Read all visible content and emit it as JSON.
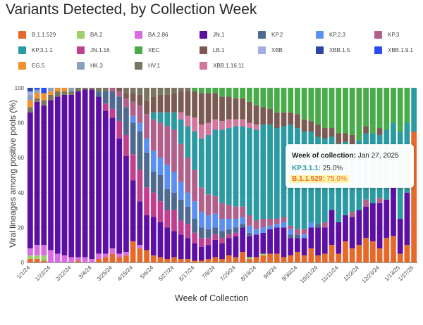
{
  "title": "Variants Detected, by Collection Week",
  "colors": {
    "B.1.1.529": "#e6692a",
    "BA.2": "#9ed16e",
    "BA.2.86": "#d96be3",
    "JN.1": "#5b0fa3",
    "KP.2": "#4f6a8f",
    "KP.2.3": "#5b8ff2",
    "KP.3": "#b0608a",
    "KP.3.1.1": "#2b9aa3",
    "JN.1.16": "#c23f8f",
    "XEC": "#4aab4a",
    "LB.1": "#7a5a52",
    "XBB": "#a0aee0",
    "XBB.1.5": "#2b45a8",
    "XBB.1.9.1": "#2a4cf0",
    "EG.5": "#f2922e",
    "HK.3": "#8ba0bf",
    "HV.1": "#7a7560",
    "XBB.1.16.11": "#d4779c"
  },
  "legend": [
    {
      "name": "B.1.1.529",
      "color": "#e6692a"
    },
    {
      "name": "BA.2",
      "color": "#9ed16e"
    },
    {
      "name": "BA.2.86",
      "color": "#d96be3"
    },
    {
      "name": "JN.1",
      "color": "#5b0fa3"
    },
    {
      "name": "KP.2",
      "color": "#4f6a8f"
    },
    {
      "name": "KP.2.3",
      "color": "#5b8ff2"
    },
    {
      "name": "KP.3",
      "color": "#b0608a"
    },
    {
      "name": "KP.3.1.1",
      "color": "#2b9aa3"
    },
    {
      "name": "JN.1.16",
      "color": "#c23f8f"
    },
    {
      "name": "XEC",
      "color": "#4aab4a"
    },
    {
      "name": "LB.1",
      "color": "#7a5a52"
    },
    {
      "name": "XBB",
      "color": "#a0aee0"
    },
    {
      "name": "XBB.1.5",
      "color": "#2b45a8"
    },
    {
      "name": "XBB.1.9.1",
      "color": "#2a4cf0"
    },
    {
      "name": "EG.5",
      "color": "#f2922e"
    },
    {
      "name": "HK.3",
      "color": "#8ba0bf"
    },
    {
      "name": "HV.1",
      "color": "#7a7560"
    },
    {
      "name": "XBB.1.16.11",
      "color": "#d4779c"
    }
  ],
  "tooltip": {
    "header_label": "Week of collection:",
    "header_date": "Jan 27, 2025",
    "row1_label": "KP.3.1.1:",
    "row1_value": "25.0%",
    "row2_label": "B.1.1.529:",
    "row2_value": "75.0%"
  },
  "chart_data": {
    "type": "bar",
    "stacked": true,
    "xlabel": "Week of Collection",
    "ylabel": "Viral lineages among positive pools (%)",
    "ylim": [
      0,
      100
    ],
    "yticks": [
      0,
      20,
      40,
      60,
      80,
      100
    ],
    "xtick_labels": [
      "1/1/24",
      "1/22/24",
      "2/12/24",
      "3/4/24",
      "3/25/24",
      "4/15/24",
      "5/6/24",
      "5/27/24",
      "6/17/24",
      "7/8/24",
      "7/29/24",
      "8/19/24",
      "9/9/24",
      "9/30/24",
      "10/21/24",
      "11/11/24",
      "12/2/24",
      "12/23/24",
      "1/13/25",
      "1/27/25"
    ],
    "xtick_index": [
      0,
      3,
      6,
      9,
      12,
      15,
      18,
      21,
      24,
      27,
      30,
      33,
      36,
      39,
      42,
      45,
      48,
      51,
      54,
      56
    ],
    "series_order": [
      "B.1.1.529",
      "BA.2",
      "BA.2.86",
      "JN.1",
      "JN.1.16",
      "KP.2",
      "KP.2.3",
      "KP.3",
      "KP.3.1.1",
      "XBB.1.16.11",
      "LB.1",
      "XEC",
      "HV.1",
      "EG.5",
      "HK.3",
      "XBB",
      "XBB.1.5",
      "XBB.1.9.1"
    ],
    "weeks": [
      {
        "B.1.1.529": 2,
        "BA.2": 2,
        "BA.2.86": 4,
        "JN.1": 78,
        "HV.1": 3,
        "EG.5": 4,
        "HK.3": 3,
        "XBB": 2,
        "XBB.1.5": 2
      },
      {
        "B.1.1.529": 2,
        "BA.2": 2,
        "BA.2.86": 6,
        "JN.1": 82,
        "HV.1": 2,
        "EG.5": 3,
        "HK.3": 2,
        "XBB.1.9.1": 1
      },
      {
        "B.1.1.529": 1,
        "BA.2": 3,
        "BA.2.86": 6,
        "JN.1": 80,
        "HV.1": 3,
        "EG.5": 4,
        "XBB.1.9.1": 3
      },
      {
        "BA.2.86": 7,
        "JN.1": 86,
        "HV.1": 3,
        "EG.5": 2,
        "HK.3": 2
      },
      {
        "BA.2.86": 5,
        "JN.1": 90,
        "HV.1": 3,
        "EG.5": 2
      },
      {
        "BA.2.86": 4,
        "JN.1": 92,
        "HV.1": 2,
        "EG.5": 2
      },
      {
        "BA.2.86": 3,
        "JN.1": 93,
        "HV.1": 2,
        "HK.3": 2
      },
      {
        "B.1.1.529": 1,
        "BA.2.86": 2,
        "JN.1": 95,
        "HV.1": 2
      },
      {
        "BA.2.86": 3,
        "JN.1": 96,
        "HV.1": 1
      },
      {
        "BA.2.86": 2,
        "JN.1": 97,
        "HV.1": 1
      },
      {
        "B.1.1.529": 2,
        "BA.2.86": 3,
        "JN.1": 90,
        "KP.2": 3,
        "HV.1": 2
      },
      {
        "B.1.1.529": 3,
        "BA.2.86": 2,
        "JN.1": 82,
        "JN.1.16": 4,
        "KP.2": 7,
        "HV.1": 2
      },
      {
        "B.1.1.529": 5,
        "BA.2.86": 3,
        "JN.1": 75,
        "JN.1.16": 5,
        "KP.2": 10,
        "KP.3": 2
      },
      {
        "B.1.1.529": 3,
        "BA.2.86": 2,
        "JN.1": 66,
        "JN.1.16": 10,
        "KP.2": 14,
        "KP.3": 3,
        "LB.1": 2
      },
      {
        "B.1.1.529": 4,
        "BA.2.86": 2,
        "JN.1": 55,
        "JN.1.16": 12,
        "KP.2": 16,
        "KP.3": 5,
        "LB.1": 3,
        "HV.1": 3
      },
      {
        "B.1.1.529": 12,
        "JN.1": 35,
        "JN.1.16": 15,
        "KP.2": 18,
        "KP.2.3": 4,
        "KP.3": 8,
        "LB.1": 5,
        "HV.1": 3
      },
      {
        "B.1.1.529": 8,
        "BA.2.86": 2,
        "JN.1": 25,
        "JN.1.16": 18,
        "KP.2": 22,
        "KP.2.3": 5,
        "KP.3": 10,
        "LB.1": 6,
        "HV.1": 4
      },
      {
        "B.1.1.529": 7,
        "JN.1": 20,
        "JN.1.16": 16,
        "KP.2": 20,
        "KP.2.3": 8,
        "KP.3": 14,
        "LB.1": 8,
        "HV.1": 7
      },
      {
        "B.1.1.529": 4,
        "JN.1": 22,
        "JN.1.16": 14,
        "KP.2": 12,
        "KP.2.3": 12,
        "KP.3": 18,
        "KP.3.1.1": 4,
        "LB.1": 9,
        "HV.1": 5
      },
      {
        "B.1.1.529": 3,
        "JN.1": 20,
        "JN.1.16": 12,
        "KP.2": 15,
        "KP.2.3": 10,
        "KP.3": 20,
        "KP.3.1.1": 6,
        "LB.1": 10,
        "HV.1": 4
      },
      {
        "B.1.1.529": 2,
        "JN.1": 18,
        "JN.1.16": 10,
        "KP.2": 12,
        "KP.2.3": 14,
        "KP.3": 22,
        "KP.3.1.1": 8,
        "LB.1": 10,
        "HV.1": 4
      },
      {
        "B.1.1.529": 3,
        "JN.1": 15,
        "JN.1.16": 12,
        "KP.2": 10,
        "KP.2.3": 12,
        "KP.3": 24,
        "KP.3.1.1": 10,
        "LB.1": 11,
        "HV.1": 3
      },
      {
        "B.1.1.529": 2,
        "JN.1": 14,
        "JN.1.16": 8,
        "KP.2": 12,
        "KP.2.3": 10,
        "KP.3": 22,
        "KP.3.1.1": 14,
        "XBB.1.16.11": 4,
        "LB.1": 12,
        "HV.1": 2
      },
      {
        "B.1.1.529": 2,
        "JN.1": 12,
        "JN.1.16": 8,
        "KP.2": 10,
        "KP.2.3": 8,
        "KP.3": 20,
        "KP.3.1.1": 18,
        "XBB.1.16.11": 6,
        "LB.1": 14,
        "HV.1": 2
      },
      {
        "B.1.1.529": 1,
        "JN.1": 10,
        "JN.1.16": 6,
        "KP.2": 8,
        "KP.2.3": 10,
        "KP.3": 18,
        "KP.3.1.1": 22,
        "XBB.1.16.11": 8,
        "LB.1": 15,
        "XEC": 2
      },
      {
        "B.1.1.529": 1,
        "JN.1": 8,
        "JN.1.16": 5,
        "KP.2": 6,
        "KP.2.3": 9,
        "KP.3": 14,
        "KP.3.1.1": 28,
        "XBB.1.16.11": 8,
        "LB.1": 18,
        "XEC": 3
      },
      {
        "B.1.1.529": 2,
        "JN.1": 8,
        "JN.1.16": 4,
        "KP.2": 5,
        "KP.2.3": 8,
        "KP.3": 12,
        "KP.3.1.1": 34,
        "XBB.1.16.11": 7,
        "LB.1": 17,
        "XEC": 3
      },
      {
        "B.1.1.529": 3,
        "JN.1": 10,
        "JN.1.16": 3,
        "KP.2": 4,
        "KP.2.3": 8,
        "KP.3": 10,
        "KP.3.1.1": 38,
        "XBB.1.16.11": 6,
        "LB.1": 15,
        "XEC": 3
      },
      {
        "B.1.1.529": 2,
        "JN.1": 9,
        "JN.1.16": 3,
        "KP.2": 4,
        "KP.2.3": 7,
        "KP.3": 9,
        "KP.3.1.1": 42,
        "XBB.1.16.11": 5,
        "LB.1": 14,
        "XEC": 5
      },
      {
        "B.1.1.529": 4,
        "JN.1": 10,
        "JN.1.16": 2,
        "KP.2": 3,
        "KP.2.3": 6,
        "KP.3": 8,
        "KP.3.1.1": 44,
        "XBB.1.16.11": 5,
        "LB.1": 13,
        "XEC": 5
      },
      {
        "B.1.1.529": 3,
        "JN.1": 12,
        "JN.1.16": 2,
        "KP.2": 3,
        "KP.2.3": 5,
        "KP.3": 7,
        "KP.3.1.1": 46,
        "XBB.1.16.11": 4,
        "LB.1": 12,
        "XEC": 6
      },
      {
        "B.1.1.529": 6,
        "JN.1": 14,
        "KP.2": 2,
        "KP.2.3": 4,
        "KP.3": 6,
        "KP.3.1.1": 46,
        "XBB.1.16.11": 4,
        "LB.1": 12,
        "XEC": 6
      },
      {
        "B.1.1.529": 2,
        "BA.2": 1,
        "JN.1": 12,
        "KP.2": 2,
        "KP.2.3": 4,
        "KP.3": 6,
        "KP.3.1.1": 50,
        "XBB.1.16.11": 3,
        "LB.1": 12,
        "XEC": 8
      },
      {
        "B.1.1.529": 3,
        "JN.1": 13,
        "KP.2.3": 3,
        "KP.3": 5,
        "KP.3.1.1": 52,
        "XBB.1.16.11": 3,
        "LB.1": 11,
        "XEC": 10
      },
      {
        "B.1.1.529": 4,
        "BA.2": 1,
        "JN.1": 12,
        "KP.2.3": 3,
        "KP.3": 5,
        "KP.3.1.1": 54,
        "LB.1": 10,
        "XEC": 11
      },
      {
        "B.1.1.529": 5,
        "JN.1": 14,
        "KP.2.3": 2,
        "KP.3": 4,
        "KP.3.1.1": 54,
        "LB.1": 9,
        "XEC": 12
      },
      {
        "B.1.1.529": 5,
        "JN.1": 15,
        "KP.2.3": 2,
        "KP.3": 3,
        "KP.3.1.1": 52,
        "LB.1": 9,
        "XEC": 14
      },
      {
        "B.1.1.529": 3,
        "JN.1": 17,
        "KP.2.3": 3,
        "KP.3": 3,
        "KP.3.1.1": 52,
        "LB.1": 8,
        "XEC": 14
      },
      {
        "B.1.1.529": 4,
        "JN.1": 10,
        "KP.2": 2,
        "KP.2.3": 3,
        "KP.3": 2,
        "KP.3.1.1": 58,
        "LB.1": 7,
        "XEC": 14
      },
      {
        "B.1.1.529": 6,
        "JN.1": 8,
        "KP.2": 2,
        "KP.3": 3,
        "KP.3.1.1": 58,
        "LB.1": 8,
        "XEC": 15
      },
      {
        "B.1.1.529": 4,
        "JN.1": 10,
        "KP.2.3": 2,
        "KP.3": 3,
        "KP.3.1.1": 56,
        "LB.1": 7,
        "XEC": 18
      },
      {
        "B.1.1.529": 8,
        "JN.1": 12,
        "KP.2.3": 3,
        "KP.3.1.1": 52,
        "LB.1": 6,
        "XEC": 19
      },
      {
        "B.1.1.529": 4,
        "JN.1": 16,
        "KP.2": 2,
        "KP.3.1.1": 50,
        "LB.1": 7,
        "XEC": 21
      },
      {
        "B.1.1.529": 5,
        "JN.1": 15,
        "KP.3": 3,
        "KP.3.1.1": 48,
        "LB.1": 6,
        "XEC": 23
      },
      {
        "B.1.1.529": 10,
        "JN.1": 20,
        "KP.3.1.1": 42,
        "LB.1": 5,
        "XEC": 23
      },
      {
        "B.1.1.529": 5,
        "JN.1": 18,
        "KP.3.1.1": 45,
        "LB.1": 6,
        "XEC": 26
      },
      {
        "B.1.1.529": 12,
        "JN.1": 15,
        "KP.3.1.1": 42,
        "LB.1": 5,
        "XEC": 26
      },
      {
        "B.1.1.529": 8,
        "JN.1": 18,
        "KP.3": 3,
        "KP.3.1.1": 38,
        "LB.1": 6,
        "XEC": 27
      },
      {
        "B.1.1.529": 10,
        "JN.1": 20,
        "KP.3.1.1": 40,
        "XEC": 30
      },
      {
        "B.1.1.529": 14,
        "JN.1": 18,
        "KP.3": 4,
        "KP.3.1.1": 38,
        "LB.1": 4,
        "XEC": 22
      },
      {
        "B.1.1.529": 12,
        "JN.1": 22,
        "KP.3.1.1": 40,
        "XEC": 26
      },
      {
        "B.1.1.529": 8,
        "JN.1": 26,
        "KP.3": 3,
        "KP.3.1.1": 36,
        "LB.1": 4,
        "XEC": 23
      },
      {
        "B.1.1.529": 14,
        "JN.1": 22,
        "KP.3.1.1": 40,
        "XEC": 24
      },
      {
        "B.1.1.529": 15,
        "JN.1": 30,
        "KP.3.1.1": 35,
        "XEC": 20
      },
      {
        "B.1.1.529": 5,
        "JN.1": 20,
        "KP.3.1.1": 50,
        "XEC": 25
      },
      {
        "B.1.1.529": 10,
        "JN.1": 30,
        "KP.3.1.1": 40,
        "XEC": 20
      },
      {
        "B.1.1.529": 75,
        "KP.3.1.1": 25
      }
    ]
  }
}
